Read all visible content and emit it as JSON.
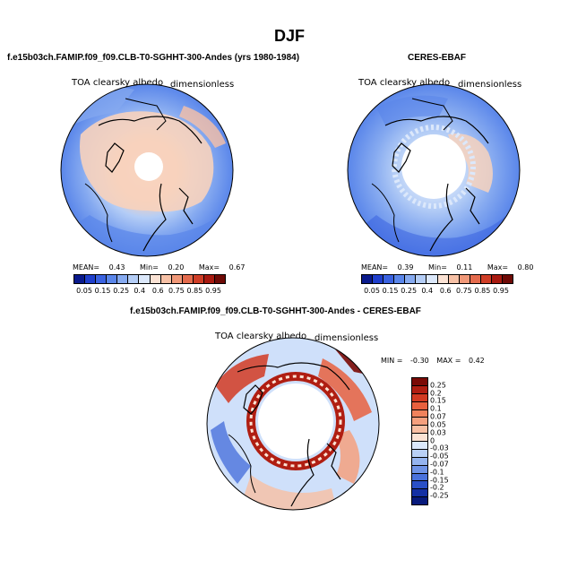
{
  "page_title": "DJF",
  "chart_data": [
    {
      "type": "heatmap",
      "projection": "north polar stereographic",
      "title": "f.e15b03ch.FAMIP.f09_f09.CLB-T0-SGHHT-300-Andes (yrs 1980-1984)",
      "variable_label": "TOA clearsky albedo",
      "units_label": "dimensionless",
      "stats": {
        "mean_label": "MEAN=",
        "mean": "0.43",
        "min_label": "Min=",
        "min": "0.20",
        "max_label": "Max=",
        "max": "0.67"
      },
      "colorbar_ticks": [
        "0.05",
        "0.15",
        "0.25",
        "0.4",
        "0.6",
        "0.75",
        "0.85",
        "0.95"
      ],
      "colorbar_colors": [
        "#0a1a8c",
        "#1f3fcc",
        "#3a62e0",
        "#5a86ea",
        "#86aaf0",
        "#b4cdf6",
        "#dce8fb",
        "#fbe2d4",
        "#f7c1a6",
        "#f09878",
        "#e46b4d",
        "#cf3e27",
        "#a81a10",
        "#6e0a06"
      ]
    },
    {
      "type": "heatmap",
      "projection": "north polar stereographic",
      "title": "CERES-EBAF",
      "variable_label": "TOA clearsky albedo",
      "units_label": "dimensionless",
      "stats": {
        "mean_label": "MEAN=",
        "mean": "0.39",
        "min_label": "Min=",
        "min": "0.11",
        "max_label": "Max=",
        "max": "0.80"
      },
      "colorbar_ticks": [
        "0.05",
        "0.15",
        "0.25",
        "0.4",
        "0.6",
        "0.75",
        "0.85",
        "0.95"
      ],
      "colorbar_colors": [
        "#0a1a8c",
        "#1f3fcc",
        "#3a62e0",
        "#5a86ea",
        "#86aaf0",
        "#b4cdf6",
        "#dce8fb",
        "#fbe2d4",
        "#f7c1a6",
        "#f09878",
        "#e46b4d",
        "#cf3e27",
        "#a81a10",
        "#6e0a06"
      ]
    },
    {
      "type": "heatmap",
      "projection": "north polar stereographic",
      "title": "f.e15b03ch.FAMIP.f09_f09.CLB-T0-SGHHT-300-Andes - CERES-EBAF",
      "variable_label": "TOA clearsky albedo",
      "units_label": "dimensionless",
      "stats": {
        "min_label": "MIN =",
        "min": "-0.30",
        "max_label": "MAX =",
        "max": "0.42"
      },
      "colorbar_ticks": [
        "0.25",
        "0.2",
        "0.15",
        "0.1",
        "0.07",
        "0.05",
        "0.03",
        "0",
        "-0.03",
        "-0.05",
        "-0.07",
        "-0.1",
        "-0.15",
        "-0.2",
        "-0.25"
      ],
      "colorbar_colors": [
        "#7a0a06",
        "#b01e12",
        "#d23a22",
        "#e8603e",
        "#f0825c",
        "#f5a07e",
        "#f8bfa3",
        "#fbe3d4",
        "#dbe8fb",
        "#b9d0f6",
        "#95b4ef",
        "#6f93e6",
        "#4a72dc",
        "#2a50c6",
        "#1430a4",
        "#081a7c"
      ]
    }
  ]
}
